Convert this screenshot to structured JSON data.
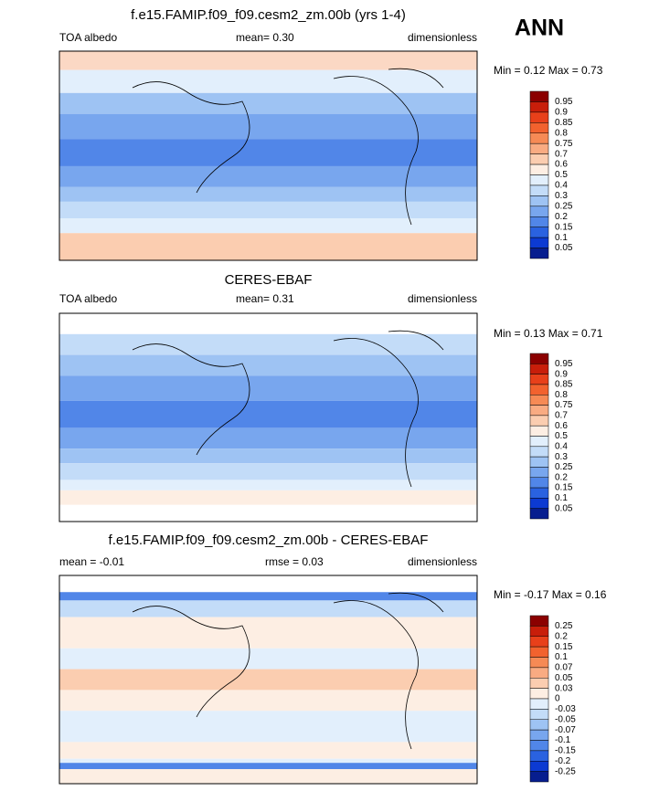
{
  "header": {
    "title": "ANN"
  },
  "panels": [
    {
      "title": "f.e15.FAMIP.f09_f09.cesm2_zm.00b (yrs 1-4)",
      "left": "TOA albedo",
      "center": "mean=  0.30",
      "right": "dimensionless",
      "range": "Min =  0.12 Max =  0.73",
      "colorbar": {
        "labels": [
          "0.95",
          "0.9",
          "0.85",
          "0.8",
          "0.75",
          "0.7",
          "0.6",
          "0.5",
          "0.4",
          "0.3",
          "0.25",
          "0.2",
          "0.15",
          "0.1",
          "0.05"
        ],
        "colors": [
          "#8b0000",
          "#c81e0a",
          "#e8401a",
          "#f2622e",
          "#f68a55",
          "#f9ab82",
          "#fbcdb0",
          "#fdeee3",
          "#e2effc",
          "#c3dcf8",
          "#9ec3f3",
          "#78a6ee",
          "#5186e8",
          "#2a62e0",
          "#0c3ad2",
          "#071e8f"
        ]
      }
    },
    {
      "title": "CERES-EBAF",
      "left": "TOA albedo",
      "center": "mean=  0.31",
      "right": "dimensionless",
      "range": "Min =  0.13 Max =  0.71",
      "colorbar": {
        "labels": [
          "0.95",
          "0.9",
          "0.85",
          "0.8",
          "0.75",
          "0.7",
          "0.6",
          "0.5",
          "0.4",
          "0.3",
          "0.25",
          "0.2",
          "0.15",
          "0.1",
          "0.05"
        ],
        "colors": [
          "#8b0000",
          "#c81e0a",
          "#e8401a",
          "#f2622e",
          "#f68a55",
          "#f9ab82",
          "#fbcdb0",
          "#fdeee3",
          "#e2effc",
          "#c3dcf8",
          "#9ec3f3",
          "#78a6ee",
          "#5186e8",
          "#2a62e0",
          "#0c3ad2",
          "#071e8f"
        ]
      }
    },
    {
      "title": "f.e15.FAMIP.f09_f09.cesm2_zm.00b - CERES-EBAF",
      "left": "mean =  -0.01",
      "center": "rmse =  0.03",
      "right": "dimensionless",
      "range": "Min =  -0.17 Max =  0.16",
      "colorbar": {
        "labels": [
          "0.25",
          "0.2",
          "0.15",
          "0.1",
          "0.07",
          "0.05",
          "0.03",
          "0",
          "-0.03",
          "-0.05",
          "-0.07",
          "-0.1",
          "-0.15",
          "-0.2",
          "-0.25"
        ],
        "colors": [
          "#8b0000",
          "#c81e0a",
          "#e8401a",
          "#f2622e",
          "#f68a55",
          "#f9ab82",
          "#fbcdb0",
          "#fdeee3",
          "#e2effc",
          "#c3dcf8",
          "#9ec3f3",
          "#78a6ee",
          "#5186e8",
          "#2a62e0",
          "#0c3ad2",
          "#071e8f"
        ]
      }
    }
  ]
}
